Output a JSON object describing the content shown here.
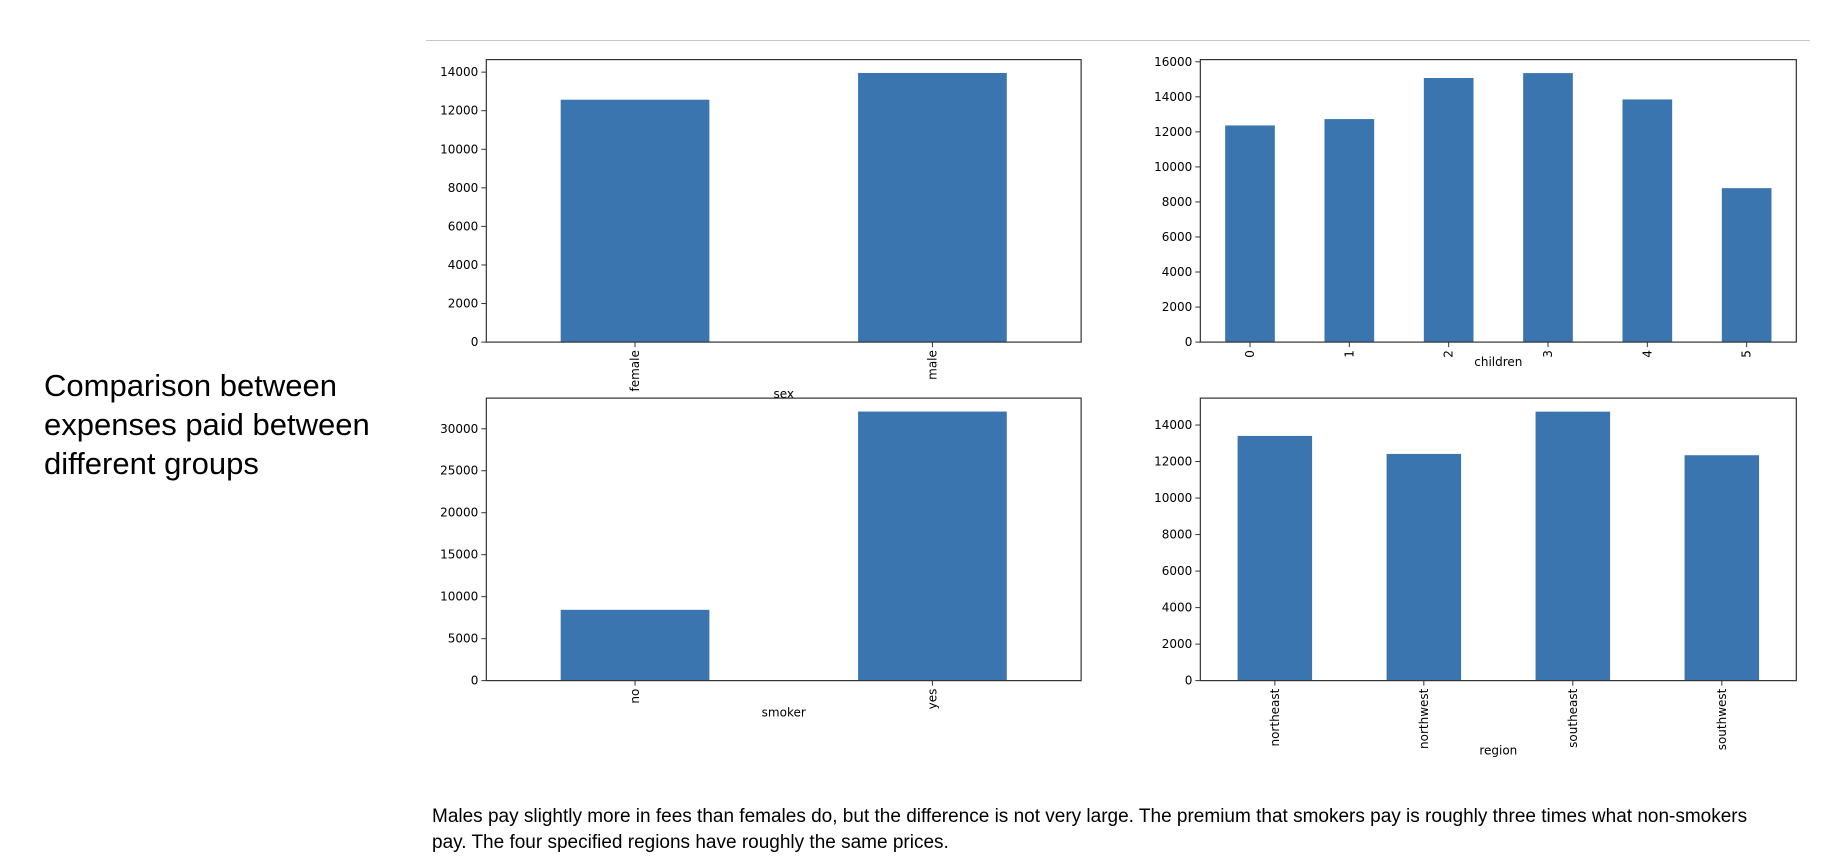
{
  "slide": {
    "title": "Comparison between\nexpenses paid between\ndifferent groups",
    "caption": "Males pay slightly more in fees than females do, but the difference is not very large. The premium that smokers pay is roughly three times what non-smokers pay. The four specified regions have roughly the same prices."
  },
  "colors": {
    "bar": "#3a75af",
    "axis": "#333333",
    "rule": "#c8c8c8"
  },
  "chart_data": [
    {
      "type": "bar",
      "xlabel": "sex",
      "ylabel": "",
      "categories": [
        "female",
        "male"
      ],
      "values": [
        12570,
        13957
      ],
      "ylim": [
        0,
        14650
      ],
      "yticks": [
        0,
        2000,
        4000,
        6000,
        8000,
        10000,
        12000,
        14000
      ],
      "grid": false,
      "tick_rotation": 90
    },
    {
      "type": "bar",
      "xlabel": "children",
      "ylabel": "",
      "categories": [
        "0",
        "1",
        "2",
        "3",
        "4",
        "5"
      ],
      "values": [
        12366,
        12731,
        15074,
        15355,
        13851,
        8786
      ],
      "ylim": [
        0,
        16125
      ],
      "yticks": [
        0,
        2000,
        4000,
        6000,
        8000,
        10000,
        12000,
        14000,
        16000
      ],
      "grid": false,
      "tick_rotation": 90
    },
    {
      "type": "bar",
      "xlabel": "smoker",
      "ylabel": "",
      "categories": [
        "no",
        "yes"
      ],
      "values": [
        8434,
        32050
      ],
      "ylim": [
        0,
        33650
      ],
      "yticks": [
        0,
        5000,
        10000,
        15000,
        20000,
        25000,
        30000
      ],
      "grid": false,
      "tick_rotation": 90
    },
    {
      "type": "bar",
      "xlabel": "region",
      "ylabel": "",
      "categories": [
        "northeast",
        "northwest",
        "southeast",
        "southwest"
      ],
      "values": [
        13406,
        12418,
        14735,
        12347
      ],
      "ylim": [
        0,
        15475
      ],
      "yticks": [
        0,
        2000,
        4000,
        6000,
        8000,
        10000,
        12000,
        14000
      ],
      "grid": false,
      "tick_rotation": 90
    }
  ]
}
